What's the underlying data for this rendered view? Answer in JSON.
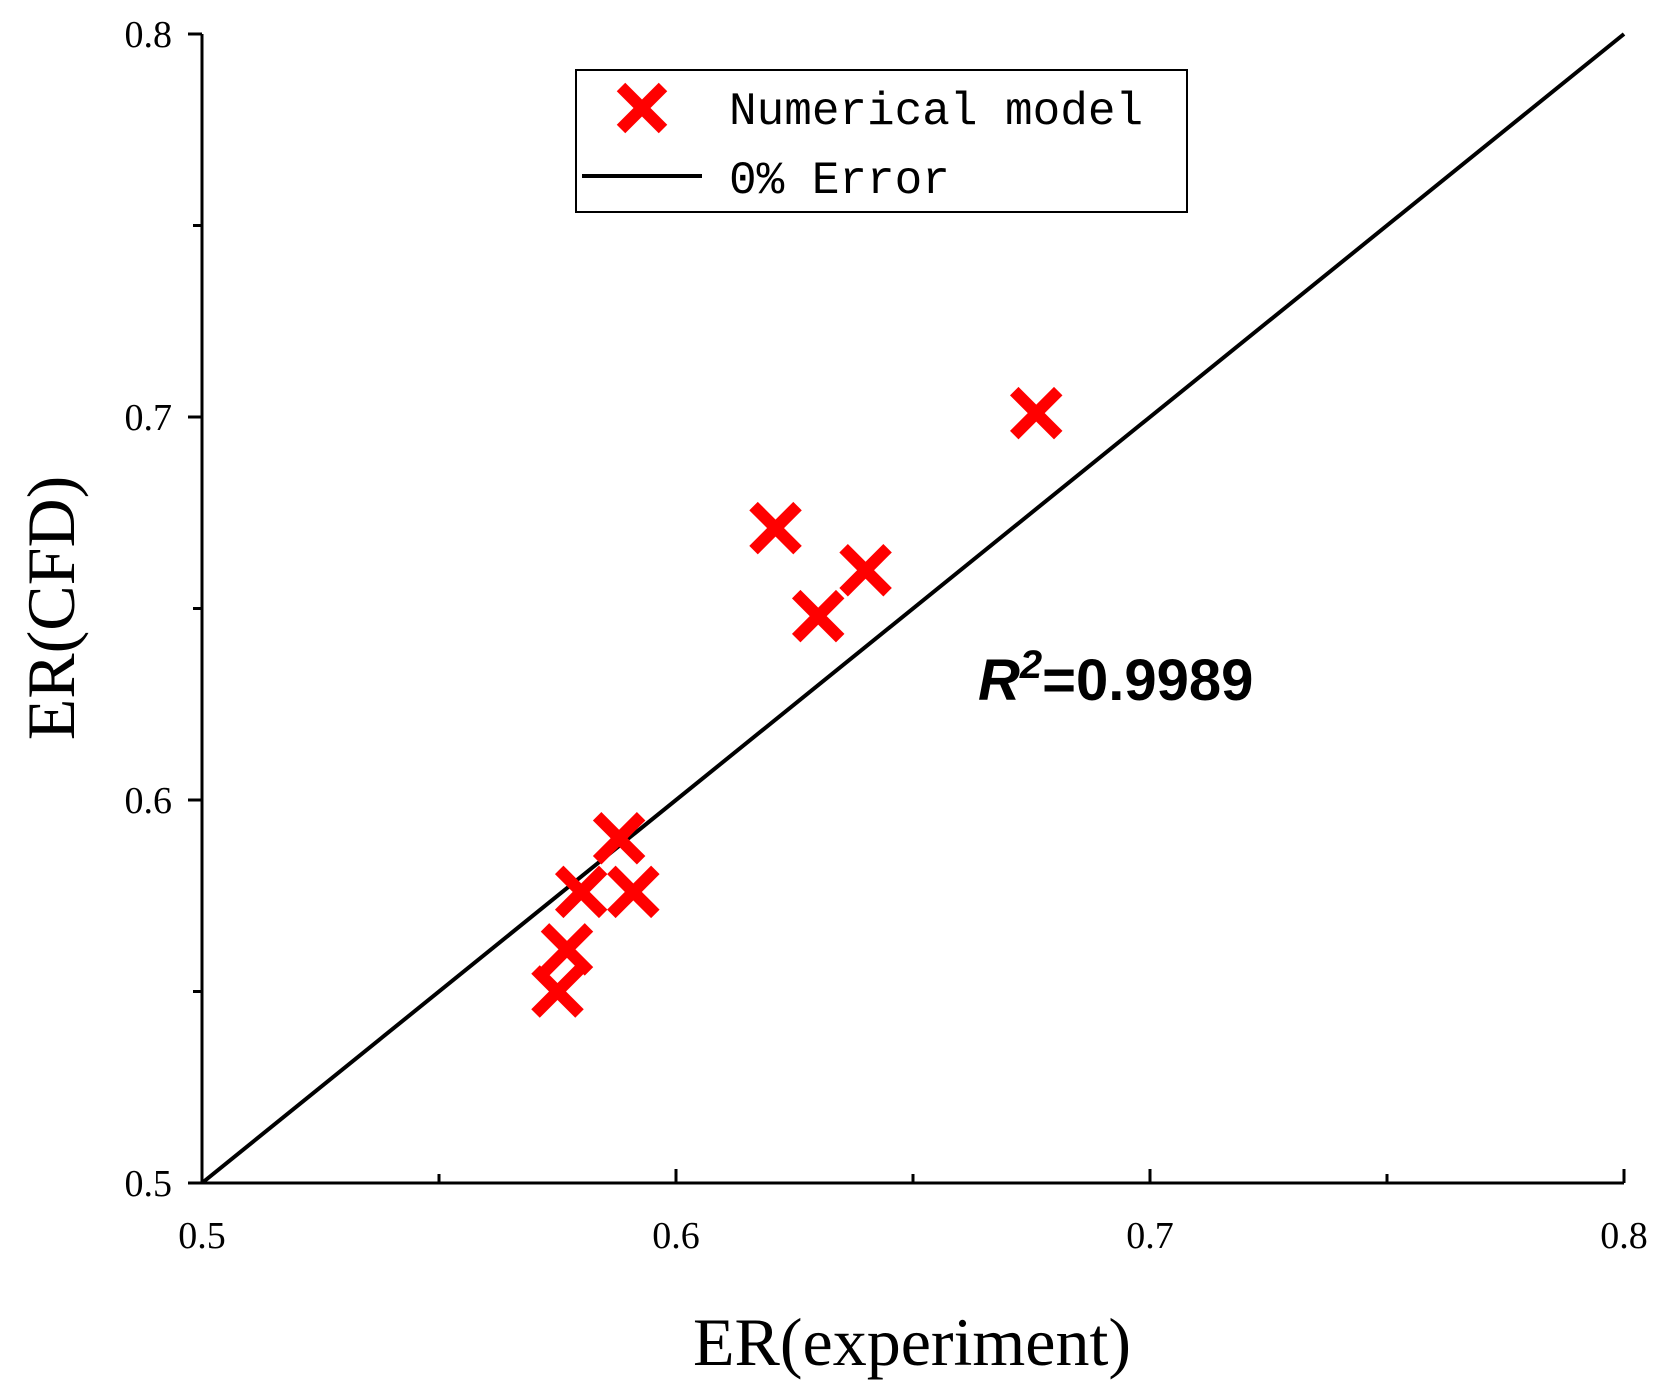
{
  "chart_data": {
    "type": "scatter",
    "xlabel": "ER(experiment)",
    "ylabel": "ER(CFD)",
    "xlim": [
      0.5,
      0.8
    ],
    "ylim": [
      0.5,
      0.8
    ],
    "xticks": [
      "0.5",
      "0.6",
      "0.7",
      "0.8"
    ],
    "yticks": [
      "0.5",
      "0.6",
      "0.7",
      "0.8"
    ],
    "grid": false,
    "legend_position": "top-center",
    "series": [
      {
        "name": "Numerical model",
        "marker": "x",
        "color": "#ff0000",
        "points": [
          {
            "x": 0.676,
            "y": 0.701
          },
          {
            "x": 0.621,
            "y": 0.671
          },
          {
            "x": 0.64,
            "y": 0.66
          },
          {
            "x": 0.63,
            "y": 0.648
          },
          {
            "x": 0.588,
            "y": 0.59
          },
          {
            "x": 0.591,
            "y": 0.576
          },
          {
            "x": 0.58,
            "y": 0.576
          },
          {
            "x": 0.577,
            "y": 0.561
          },
          {
            "x": 0.575,
            "y": 0.55
          }
        ]
      },
      {
        "name": "0% Error",
        "type": "line",
        "color": "#000000",
        "points": [
          {
            "x": 0.5,
            "y": 0.5
          },
          {
            "x": 0.8,
            "y": 0.8
          }
        ]
      }
    ],
    "annotation": {
      "r_symbol": "R",
      "exponent": "2",
      "value": "=0.9989"
    }
  }
}
